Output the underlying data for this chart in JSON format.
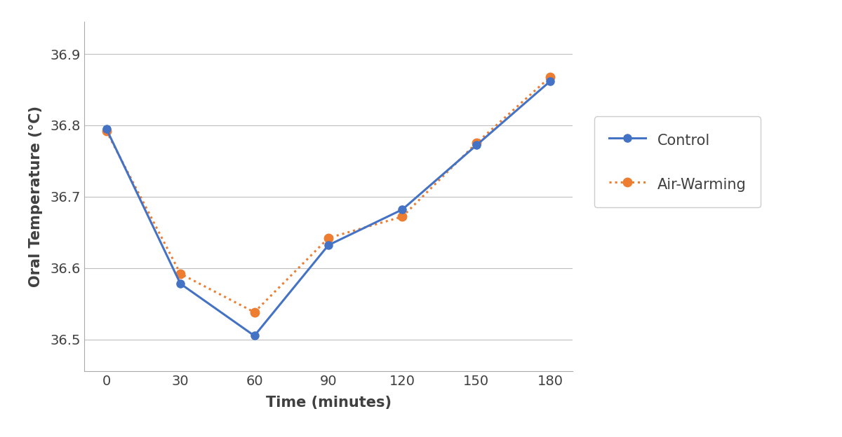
{
  "time": [
    0,
    30,
    60,
    90,
    120,
    150,
    180
  ],
  "control": [
    36.795,
    36.578,
    36.505,
    36.632,
    36.682,
    36.772,
    36.862
  ],
  "air_warming": [
    36.792,
    36.592,
    36.538,
    36.642,
    36.672,
    36.775,
    36.868
  ],
  "control_color": "#4472C4",
  "air_warming_color": "#ED7D31",
  "ylabel": "Oral Temperature (°C)",
  "xlabel": "Time (minutes)",
  "legend_control": "Control",
  "legend_air_warming": "Air-Warming",
  "ylim_min": 36.455,
  "ylim_max": 36.945,
  "yticks": [
    36.5,
    36.6,
    36.7,
    36.8,
    36.9
  ],
  "xticks": [
    0,
    30,
    60,
    90,
    120,
    150,
    180
  ],
  "label_fontsize": 15,
  "tick_fontsize": 14,
  "legend_fontsize": 15,
  "background_color": "#FFFFFF",
  "grid_color": "#BEBEBE"
}
